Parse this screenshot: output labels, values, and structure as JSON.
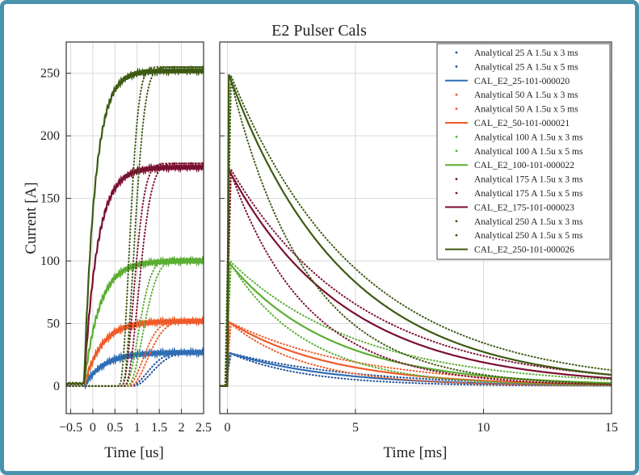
{
  "chart_data": {
    "type": "line",
    "title": "E2 Pulser Cals",
    "ylabel": "Current [A]",
    "ylim": [
      -22,
      275
    ],
    "yticks": [
      0,
      50,
      100,
      150,
      200,
      250
    ],
    "grid": true,
    "legend_placement": "top-right",
    "panels": [
      {
        "name": "rise",
        "xlabel": "Time [us]",
        "xlim": [
          -0.6,
          2.5
        ],
        "xticks": [
          -0.5,
          0,
          0.5,
          1,
          1.5,
          2,
          2.5
        ],
        "xtick_labels": [
          "−0.5",
          "0",
          "0.5",
          "1",
          "1.5",
          "2",
          "2.5"
        ]
      },
      {
        "name": "decay",
        "xlabel": "Time [ms]",
        "xlim": [
          -0.3,
          15
        ],
        "xticks": [
          0,
          5,
          10,
          15
        ],
        "xtick_labels": [
          "0",
          "5",
          "10",
          "15"
        ]
      }
    ],
    "series": [
      {
        "name": "Analytical 25 A 1.5u x 3 ms",
        "style": "dotted",
        "color": "#1f4e96",
        "amplitude": 27,
        "rise_tau_us": 0.45,
        "decay_tau_ms": 3
      },
      {
        "name": "Analytical 25 A 1.5u x 5 ms",
        "style": "dotted",
        "color": "#1f4e96",
        "amplitude": 27,
        "rise_tau_us": 0.5,
        "decay_tau_ms": 5
      },
      {
        "name": "CAL_E2_25-101-000020",
        "style": "solid",
        "color": "#2f6eb5",
        "amplitude": 27,
        "rise_tau_us": 0.45,
        "decay_tau_ms": 4
      },
      {
        "name": "Analytical 50 A 1.5u x 3 ms",
        "style": "dotted",
        "color": "#f05a28",
        "amplitude": 52,
        "rise_tau_us": 0.4,
        "decay_tau_ms": 3
      },
      {
        "name": "Analytical 50 A 1.5u x 5 ms",
        "style": "dotted",
        "color": "#f05a28",
        "amplitude": 52,
        "rise_tau_us": 0.45,
        "decay_tau_ms": 5
      },
      {
        "name": "CAL_E2_50-101-000021",
        "style": "solid",
        "color": "#f05a28",
        "amplitude": 52,
        "rise_tau_us": 0.4,
        "decay_tau_ms": 4
      },
      {
        "name": "Analytical 100 A 1.5u x 3 ms",
        "style": "dotted",
        "color": "#5aae32",
        "amplitude": 102,
        "rise_tau_us": 0.35,
        "decay_tau_ms": 3
      },
      {
        "name": "Analytical 100 A 1.5u x 5 ms",
        "style": "dotted",
        "color": "#5aae32",
        "amplitude": 102,
        "rise_tau_us": 0.4,
        "decay_tau_ms": 5
      },
      {
        "name": "CAL_E2_100-101-000022",
        "style": "solid",
        "color": "#5aae32",
        "amplitude": 100,
        "rise_tau_us": 0.35,
        "decay_tau_ms": 4
      },
      {
        "name": "Analytical 175 A 1.5u x 3 ms",
        "style": "dotted",
        "color": "#7a1030",
        "amplitude": 178,
        "rise_tau_us": 0.3,
        "decay_tau_ms": 3
      },
      {
        "name": "Analytical 175 A 1.5u x 5 ms",
        "style": "dotted",
        "color": "#7a1030",
        "amplitude": 178,
        "rise_tau_us": 0.35,
        "decay_tau_ms": 5
      },
      {
        "name": "CAL_E2_175-101-000023",
        "style": "solid",
        "color": "#7a1030",
        "amplitude": 175,
        "rise_tau_us": 0.3,
        "decay_tau_ms": 4.5
      },
      {
        "name": "Analytical 250 A 1.5u x 3 ms",
        "style": "dotted",
        "color": "#3d5a12",
        "amplitude": 255,
        "rise_tau_us": 0.25,
        "decay_tau_ms": 3
      },
      {
        "name": "Analytical 250 A 1.5u x 5 ms",
        "style": "dotted",
        "color": "#3d5a12",
        "amplitude": 255,
        "rise_tau_us": 0.3,
        "decay_tau_ms": 5
      },
      {
        "name": "CAL_E2_250-101-000026",
        "style": "solid",
        "color": "#3d5a12",
        "amplitude": 252,
        "rise_tau_us": 0.25,
        "decay_tau_ms": 4.5
      }
    ]
  }
}
